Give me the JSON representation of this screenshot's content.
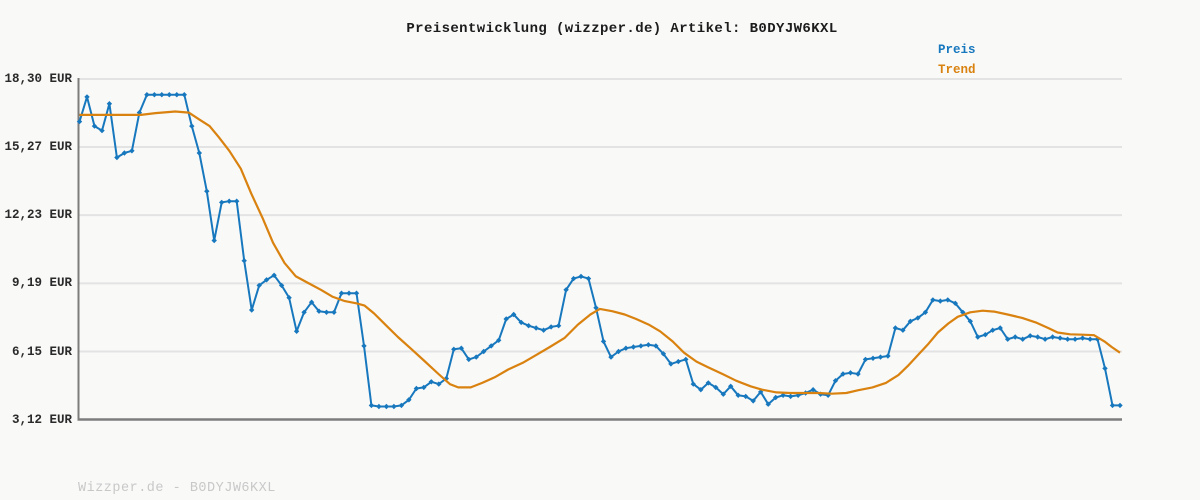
{
  "title": "Preisentwicklung (wizzper.de) Artikel: B0DYJW6KXL",
  "footer": "Wizzper.de - B0DYJW6KXL",
  "legend": {
    "items": [
      {
        "label": "Preis",
        "color": "#1878be"
      },
      {
        "label": "Trend",
        "color": "#d9820f"
      }
    ]
  },
  "colors": {
    "preis": "#1878be",
    "trend": "#d9820f",
    "grid": "#e3e3e3",
    "axis": "#7d7d7d",
    "background": "#f9f9f8",
    "title_text": "#1c1c1c",
    "tick_text": "#2a2a2a",
    "footer_text": "#c8c8c8"
  },
  "chart_data": {
    "type": "line",
    "title": "Preisentwicklung (wizzper.de) Artikel: B0DYJW6KXL",
    "xlabel": "",
    "ylabel": "EUR",
    "x_tick_labels_visible": false,
    "grid": "horizontal",
    "legend_position": "top-right",
    "ylim": [
      3.12,
      18.3
    ],
    "y_ticks": [
      {
        "label": "18,30 EUR",
        "value": 18.3
      },
      {
        "label": "15,27 EUR",
        "value": 15.27
      },
      {
        "label": "12,23 EUR",
        "value": 12.23
      },
      {
        "label": "9,19 EUR",
        "value": 9.19
      },
      {
        "label": "6,15 EUR",
        "value": 6.15
      },
      {
        "label": "3,12 EUR",
        "value": 3.12
      }
    ],
    "series": [
      {
        "name": "Preis",
        "unit": "EUR",
        "marker": "diamond",
        "spacing": "uniform",
        "values": [
          16.4,
          17.5,
          16.2,
          16.0,
          17.2,
          14.8,
          15.0,
          15.1,
          16.8,
          17.6,
          17.6,
          17.6,
          17.6,
          17.6,
          17.6,
          16.2,
          15.0,
          13.3,
          11.1,
          12.8,
          12.85,
          12.85,
          10.2,
          8.0,
          9.1,
          9.35,
          9.55,
          9.1,
          8.55,
          7.05,
          7.9,
          8.35,
          7.95,
          7.9,
          7.9,
          8.75,
          8.75,
          8.75,
          6.4,
          3.75,
          3.7,
          3.7,
          3.7,
          3.75,
          4.0,
          4.5,
          4.55,
          4.8,
          4.7,
          4.95,
          6.25,
          6.3,
          5.8,
          5.9,
          6.15,
          6.4,
          6.65,
          7.6,
          7.8,
          7.45,
          7.3,
          7.2,
          7.1,
          7.25,
          7.3,
          8.9,
          9.4,
          9.5,
          9.4,
          8.1,
          6.6,
          5.9,
          6.15,
          6.3,
          6.35,
          6.4,
          6.45,
          6.4,
          6.05,
          5.6,
          5.7,
          5.8,
          4.7,
          4.45,
          4.75,
          4.55,
          4.25,
          4.6,
          4.2,
          4.15,
          3.95,
          4.35,
          3.8,
          4.1,
          4.2,
          4.15,
          4.2,
          4.3,
          4.45,
          4.25,
          4.2,
          4.85,
          5.15,
          5.2,
          5.15,
          5.8,
          5.85,
          5.9,
          5.95,
          7.2,
          7.1,
          7.5,
          7.65,
          7.9,
          8.45,
          8.4,
          8.45,
          8.3,
          7.9,
          7.5,
          6.8,
          6.9,
          7.1,
          7.2,
          6.7,
          6.8,
          6.7,
          6.85,
          6.8,
          6.7,
          6.8,
          6.75,
          6.7,
          6.7,
          6.75,
          6.7,
          6.7,
          5.4,
          3.75,
          3.75
        ]
      },
      {
        "name": "Trend",
        "unit": "EUR",
        "marker": "none",
        "spacing": "x_fraction_value_pairs",
        "points": [
          [
            0.0,
            16.7
          ],
          [
            0.059,
            16.7
          ],
          [
            0.073,
            16.78
          ],
          [
            0.092,
            16.85
          ],
          [
            0.105,
            16.8
          ],
          [
            0.115,
            16.5
          ],
          [
            0.125,
            16.2
          ],
          [
            0.134,
            15.7
          ],
          [
            0.144,
            15.1
          ],
          [
            0.155,
            14.3
          ],
          [
            0.165,
            13.2
          ],
          [
            0.176,
            12.1
          ],
          [
            0.186,
            11.0
          ],
          [
            0.197,
            10.1
          ],
          [
            0.208,
            9.5
          ],
          [
            0.22,
            9.2
          ],
          [
            0.232,
            8.9
          ],
          [
            0.243,
            8.6
          ],
          [
            0.255,
            8.4
          ],
          [
            0.266,
            8.3
          ],
          [
            0.274,
            8.2
          ],
          [
            0.283,
            7.85
          ],
          [
            0.295,
            7.3
          ],
          [
            0.306,
            6.8
          ],
          [
            0.318,
            6.3
          ],
          [
            0.331,
            5.75
          ],
          [
            0.345,
            5.15
          ],
          [
            0.356,
            4.7
          ],
          [
            0.364,
            4.55
          ],
          [
            0.376,
            4.55
          ],
          [
            0.387,
            4.75
          ],
          [
            0.399,
            5.0
          ],
          [
            0.412,
            5.35
          ],
          [
            0.426,
            5.65
          ],
          [
            0.439,
            6.0
          ],
          [
            0.452,
            6.35
          ],
          [
            0.466,
            6.75
          ],
          [
            0.479,
            7.35
          ],
          [
            0.491,
            7.8
          ],
          [
            0.5,
            8.05
          ],
          [
            0.512,
            7.95
          ],
          [
            0.524,
            7.8
          ],
          [
            0.535,
            7.6
          ],
          [
            0.547,
            7.35
          ],
          [
            0.558,
            7.05
          ],
          [
            0.57,
            6.6
          ],
          [
            0.581,
            6.1
          ],
          [
            0.593,
            5.7
          ],
          [
            0.604,
            5.45
          ],
          [
            0.618,
            5.15
          ],
          [
            0.631,
            4.85
          ],
          [
            0.645,
            4.6
          ],
          [
            0.656,
            4.45
          ],
          [
            0.67,
            4.33
          ],
          [
            0.683,
            4.3
          ],
          [
            0.697,
            4.3
          ],
          [
            0.71,
            4.3
          ],
          [
            0.723,
            4.27
          ],
          [
            0.737,
            4.3
          ],
          [
            0.748,
            4.42
          ],
          [
            0.762,
            4.55
          ],
          [
            0.775,
            4.75
          ],
          [
            0.787,
            5.1
          ],
          [
            0.796,
            5.5
          ],
          [
            0.806,
            6.0
          ],
          [
            0.816,
            6.5
          ],
          [
            0.825,
            7.0
          ],
          [
            0.835,
            7.4
          ],
          [
            0.844,
            7.7
          ],
          [
            0.856,
            7.9
          ],
          [
            0.868,
            7.97
          ],
          [
            0.879,
            7.93
          ],
          [
            0.892,
            7.8
          ],
          [
            0.906,
            7.65
          ],
          [
            0.919,
            7.45
          ],
          [
            0.931,
            7.2
          ],
          [
            0.94,
            7.0
          ],
          [
            0.952,
            6.92
          ],
          [
            0.964,
            6.9
          ],
          [
            0.975,
            6.88
          ],
          [
            0.985,
            6.6
          ],
          [
            0.992,
            6.35
          ],
          [
            1.0,
            6.1
          ]
        ]
      }
    ]
  }
}
